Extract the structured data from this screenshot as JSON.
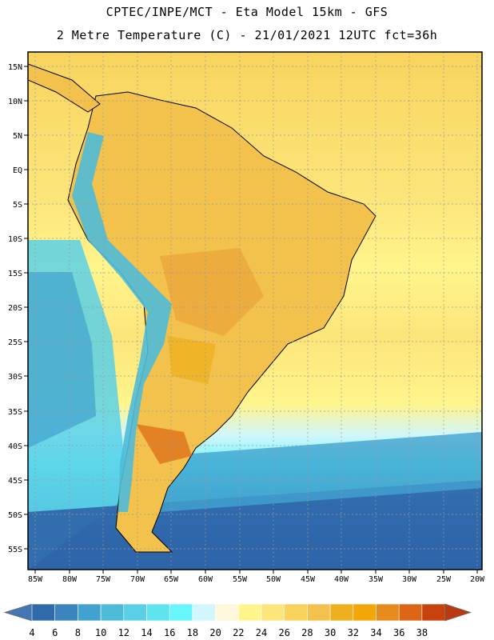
{
  "title": {
    "line1": "CPTEC/INPE/MCT -  Eta Model 15km - GFS",
    "line2": "2 Metre Temperature (C) - 21/01/2021 12UTC fct=36h"
  },
  "map": {
    "region": "South America",
    "variable": "2 Metre Temperature",
    "units": "C",
    "lat_ticks": [
      "15N",
      "10N",
      "5N",
      "EQ",
      "5S",
      "10S",
      "15S",
      "20S",
      "25S",
      "30S",
      "35S",
      "40S",
      "45S",
      "50S",
      "55S"
    ],
    "lon_ticks": [
      "85W",
      "80W",
      "75W",
      "70W",
      "65W",
      "60W",
      "55W",
      "50W",
      "45W",
      "40W",
      "35W",
      "30W",
      "25W",
      "20W"
    ],
    "colors": {
      "ocean_warm": "#fce57a",
      "ocean_mid": "#fcd968",
      "land_warm": "#f2c24c",
      "land_hot": "#e9a53a",
      "cool_coast": "#8ee8f4",
      "cold_deep": "#2f64a8",
      "grid": "#9a9a9a"
    }
  },
  "colorbar": {
    "labels": [
      "4",
      "6",
      "8",
      "10",
      "12",
      "14",
      "16",
      "18",
      "20",
      "22",
      "24",
      "26",
      "28",
      "30",
      "32",
      "34",
      "36",
      "38"
    ],
    "colors": [
      "#4476b5",
      "#2f6aaa",
      "#3a85bd",
      "#42a2cf",
      "#4ebbd9",
      "#5ad0e6",
      "#5fe3ef",
      "#66f6fb",
      "#d2f6fb",
      "#fff8dc",
      "#fff58c",
      "#fce57a",
      "#f8d45e",
      "#f2c24c",
      "#eeb01f",
      "#f3a608",
      "#e78b1c",
      "#dd6516",
      "#c8420e",
      "#b93a10"
    ]
  }
}
